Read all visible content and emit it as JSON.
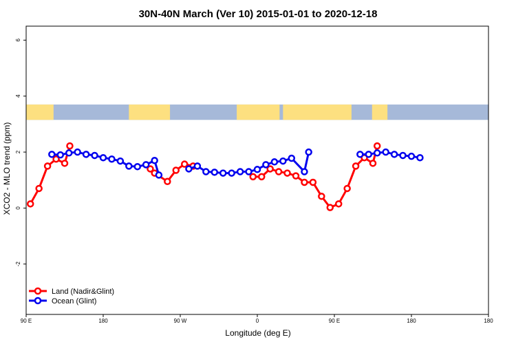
{
  "chart_data": {
    "type": "line",
    "title": "30N-40N March (Ver 10)   2015-01-01 to 2020-12-18",
    "xlabel": "Longitude (deg E)",
    "ylabel": "XCO2 - MLO trend (ppm)",
    "xlim": [
      -90,
      180
    ],
    "ylim": [
      -3.8,
      6.5
    ],
    "x_axis_ticks": [
      {
        "value": -90,
        "label": "90 E"
      },
      {
        "value": -45,
        "label": "180"
      },
      {
        "value": 0,
        "label": "90 W"
      },
      {
        "value": 45,
        "label": "0"
      },
      {
        "value": 90,
        "label": "90 E"
      },
      {
        "value": 135,
        "label": "180"
      }
    ],
    "y_axis_ticks": [
      {
        "value": -2,
        "label": "-2"
      },
      {
        "value": 0,
        "label": "0"
      },
      {
        "value": 2,
        "label": "2"
      },
      {
        "value": 4,
        "label": "4"
      },
      {
        "value": 6,
        "label": "6"
      }
    ],
    "map_band": {
      "ymin": 3.15,
      "ymax": 3.7,
      "ocean_color": "#a6b9d9",
      "land_color": "#fde080"
    },
    "series": [
      {
        "name": "Land (Nadir&Glint)",
        "color": "#ff0000",
        "segments": [
          [
            [
              -87.5,
              0.15
            ],
            [
              -82.5,
              0.7
            ],
            [
              -77.5,
              1.5
            ],
            [
              -72.5,
              1.75
            ],
            [
              -67.5,
              1.6
            ],
            [
              -64.5,
              2.22
            ]
          ],
          [
            [
              -17.5,
              1.4
            ],
            [
              -15,
              1.25
            ],
            [
              -7.5,
              0.95
            ],
            [
              -2.5,
              1.35
            ],
            [
              2.5,
              1.57
            ],
            [
              7.5,
              1.5
            ]
          ],
          [
            [
              42.5,
              1.12
            ],
            [
              47.5,
              1.12
            ],
            [
              52.5,
              1.4
            ],
            [
              57.5,
              1.3
            ],
            [
              62.5,
              1.25
            ],
            [
              67.5,
              1.15
            ],
            [
              72.5,
              0.92
            ],
            [
              77.5,
              0.92
            ],
            [
              82.5,
              0.42
            ],
            [
              87.5,
              0.02
            ],
            [
              92.5,
              0.15
            ],
            [
              97.5,
              0.7
            ],
            [
              102.5,
              1.5
            ],
            [
              107.5,
              1.8
            ],
            [
              112.5,
              1.6
            ],
            [
              115,
              2.22
            ]
          ]
        ]
      },
      {
        "name": "Ocean (Glint)",
        "color": "#0000ee",
        "segments": [
          [
            [
              -75,
              1.92
            ],
            [
              -70,
              1.9
            ],
            [
              -65,
              1.97
            ],
            [
              -60,
              2.0
            ],
            [
              -55,
              1.92
            ],
            [
              -50,
              1.88
            ],
            [
              -45,
              1.8
            ],
            [
              -40,
              1.75
            ],
            [
              -35,
              1.68
            ],
            [
              -30,
              1.5
            ],
            [
              -25,
              1.48
            ],
            [
              -20,
              1.55
            ],
            [
              -15,
              1.7
            ],
            [
              -12.5,
              1.18
            ]
          ],
          [
            [
              5,
              1.4
            ],
            [
              10,
              1.5
            ],
            [
              15,
              1.3
            ],
            [
              20,
              1.28
            ],
            [
              25,
              1.25
            ],
            [
              30,
              1.25
            ],
            [
              35,
              1.3
            ],
            [
              40,
              1.3
            ],
            [
              45,
              1.38
            ],
            [
              50,
              1.55
            ],
            [
              55,
              1.65
            ],
            [
              60,
              1.68
            ],
            [
              65,
              1.78
            ],
            [
              72.5,
              1.3
            ],
            [
              75,
              2.0
            ]
          ]
        ]
      },
      {
        "name": "Ocean (Glint)",
        "color": "#0000ee",
        "segments": [
          [
            [
              105,
              1.92
            ],
            [
              110,
              1.92
            ],
            [
              115,
              1.97
            ],
            [
              120,
              2.0
            ],
            [
              125,
              1.92
            ],
            [
              130,
              1.88
            ],
            [
              135,
              1.85
            ],
            [
              140,
              1.8
            ]
          ]
        ]
      }
    ],
    "legend": {
      "placement": "bottom-left",
      "entries": [
        {
          "label": "Land (Nadir&Glint)",
          "color": "#ff0000"
        },
        {
          "label": "Ocean (Glint)",
          "color": "#0000ee"
        }
      ]
    }
  }
}
